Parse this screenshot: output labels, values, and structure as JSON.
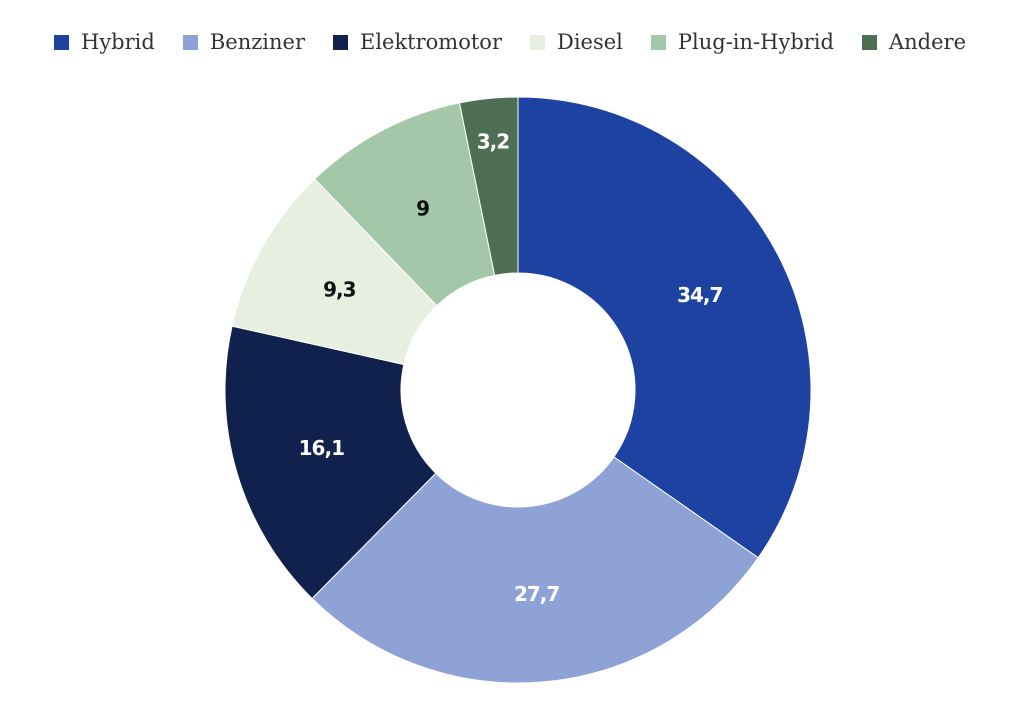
{
  "chart_data": {
    "type": "pie",
    "donut": true,
    "title": "",
    "legend_position": "top",
    "categories": [
      "Hybrid",
      "Benziner",
      "Elektromotor",
      "Diesel",
      "Plug-in-Hybrid",
      "Andere"
    ],
    "values": [
      34.7,
      27.7,
      16.1,
      9.3,
      9,
      3.2
    ],
    "value_labels": [
      "34,7",
      "27,7",
      "16,1",
      "9,3",
      "9",
      "3,2"
    ],
    "colors": [
      "#1d42a2",
      "#8fa2d5",
      "#10214d",
      "#e7f0e0",
      "#a4c6a9",
      "#4e6f54"
    ],
    "label_colors": [
      "#ffffff",
      "#ffffff",
      "#ffffff",
      "#111111",
      "#111111",
      "#ffffff"
    ]
  }
}
